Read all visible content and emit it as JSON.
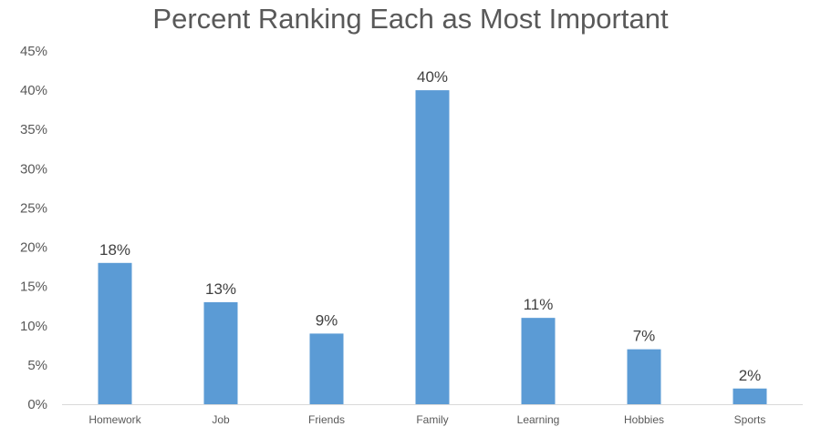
{
  "chart_data": {
    "type": "bar",
    "title": "Percent Ranking Each as Most Important",
    "xlabel": "",
    "ylabel": "",
    "categories": [
      "Homework",
      "Job",
      "Friends",
      "Family",
      "Learning",
      "Hobbies",
      "Sports"
    ],
    "values": [
      18,
      13,
      9,
      40,
      11,
      7,
      2
    ],
    "value_suffix": "%",
    "ylim": [
      0,
      45
    ],
    "yticks": [
      0,
      5,
      10,
      15,
      20,
      25,
      30,
      35,
      40,
      45
    ],
    "ytick_labels": [
      "0%",
      "5%",
      "10%",
      "15%",
      "20%",
      "25%",
      "30%",
      "35%",
      "40%",
      "45%"
    ],
    "data_labels": [
      "18%",
      "13%",
      "9%",
      "40%",
      "11%",
      "7%",
      "2%"
    ],
    "grid": false,
    "legend": "none",
    "bar_color": "#5B9BD5",
    "axis_color": "#D9D9D9"
  }
}
